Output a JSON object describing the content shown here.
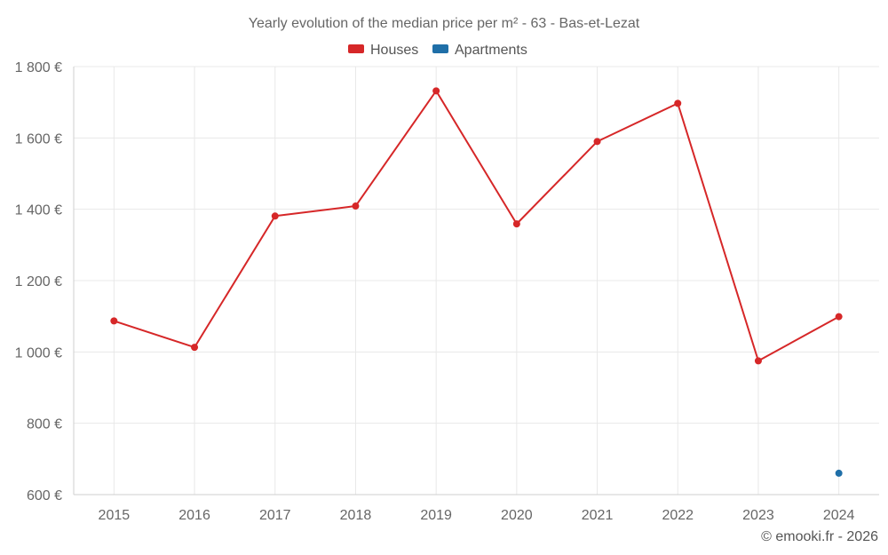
{
  "chart_data": {
    "type": "line",
    "title": "Yearly evolution of the median price per m² - 63 - Bas-et-Lezat",
    "categories": [
      "2015",
      "2016",
      "2017",
      "2018",
      "2019",
      "2020",
      "2021",
      "2022",
      "2023",
      "2024"
    ],
    "series": [
      {
        "name": "Houses",
        "color": "#d62728",
        "values": [
          1087,
          1013,
          1381,
          1409,
          1732,
          1359,
          1590,
          1697,
          975,
          1099
        ]
      },
      {
        "name": "Apartments",
        "color": "#1f6fa8",
        "values": [
          null,
          null,
          null,
          null,
          null,
          null,
          null,
          null,
          null,
          660
        ]
      }
    ],
    "ylim": [
      600,
      1800
    ],
    "yticks": [
      600,
      800,
      1000,
      1200,
      1400,
      1600,
      1800
    ],
    "ytick_labels": [
      "600 €",
      "800 €",
      "1 000 €",
      "1 200 €",
      "1 400 €",
      "1 600 €",
      "1 800 €"
    ],
    "xlabel": "",
    "ylabel": "",
    "grid": true,
    "legend_position": "top-center"
  },
  "credit": "© emooki.fr - 2026"
}
